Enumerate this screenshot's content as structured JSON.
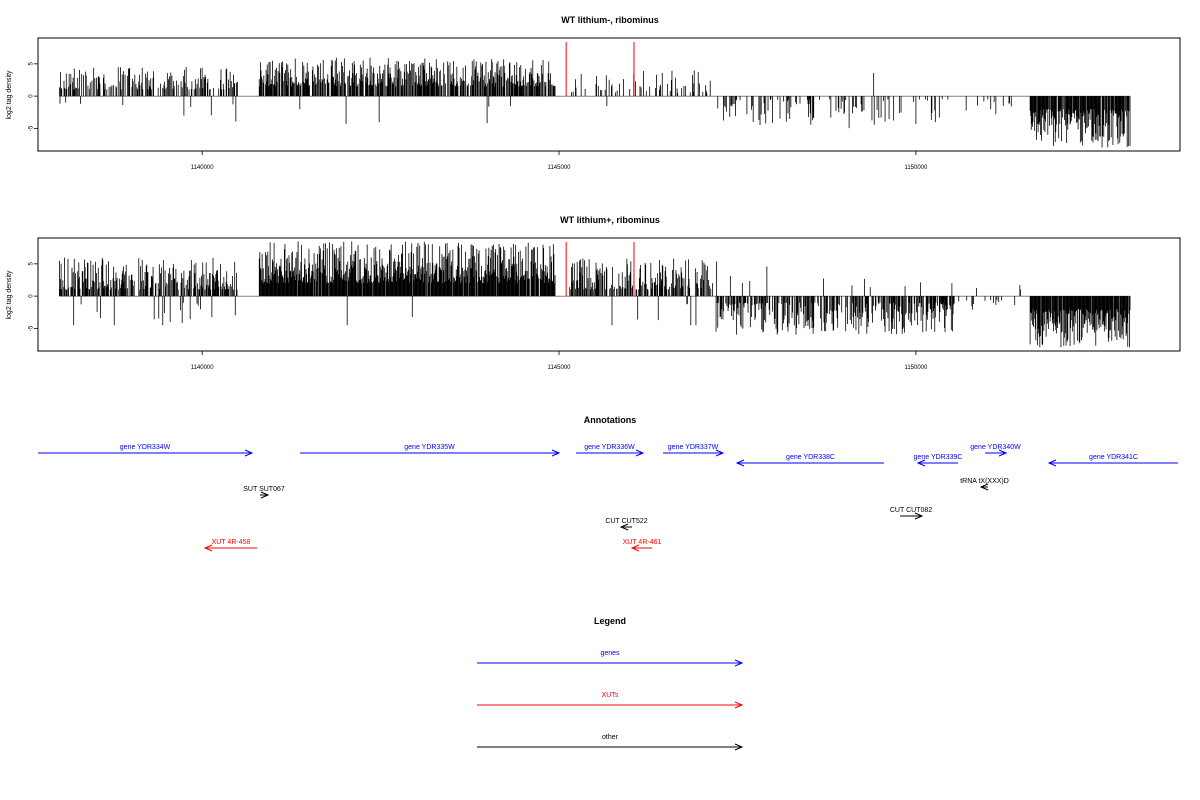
{
  "colors": {
    "genes": "#0000ff",
    "xuts": "#ff0000",
    "other": "#000000",
    "marker": "#ff0000"
  },
  "chart_data": [
    {
      "type": "bar",
      "title": "WT lithium-, ribominus",
      "ylabel": "log2 tag density",
      "xlim": [
        1137700,
        1153700
      ],
      "ylim": [
        -8.5,
        9
      ],
      "yticks": [
        -5,
        0,
        5
      ],
      "xticks": [
        1140000,
        1145000,
        1150000
      ],
      "marker_lines": [
        1145100,
        1146050
      ],
      "description_of_data": "dense per-position log2 density bars",
      "regions": [
        {
          "from": 1138000,
          "to": 1140500,
          "sign": 1,
          "min": 1.0,
          "max": 4.5,
          "density": 0.5,
          "neg_chance": 0.05
        },
        {
          "from": 1140800,
          "to": 1144950,
          "sign": 1,
          "min": 1.5,
          "max": 6.0,
          "density": 0.75,
          "neg_chance": 0.02
        },
        {
          "from": 1145150,
          "to": 1147150,
          "sign": 1,
          "min": 0.5,
          "max": 4.0,
          "density": 0.2,
          "neg_chance": 0.03
        },
        {
          "from": 1147200,
          "to": 1149000,
          "sign": -1,
          "min": 0.5,
          "max": 4.5,
          "density": 0.25,
          "neg_chance": 0.0
        },
        {
          "from": 1149000,
          "to": 1150500,
          "sign": -1,
          "min": 0.5,
          "max": 5.0,
          "density": 0.2,
          "neg_chance": 0.02
        },
        {
          "from": 1150600,
          "to": 1151500,
          "sign": -1,
          "min": 0.5,
          "max": 3.0,
          "density": 0.08,
          "neg_chance": 0.0
        },
        {
          "from": 1151600,
          "to": 1153000,
          "sign": -1,
          "min": 2.0,
          "max": 8.0,
          "density": 0.9,
          "neg_chance": 0.0
        }
      ]
    },
    {
      "type": "bar",
      "title": "WT lithium+, ribominus",
      "ylabel": "log2 tag density",
      "xlim": [
        1137700,
        1153700
      ],
      "ylim": [
        -8.5,
        9
      ],
      "yticks": [
        -5,
        0,
        5
      ],
      "xticks": [
        1140000,
        1145000,
        1150000
      ],
      "marker_lines": [
        1145100,
        1146050
      ],
      "description_of_data": "dense per-position log2 density bars",
      "regions": [
        {
          "from": 1138000,
          "to": 1140500,
          "sign": 1,
          "min": 1.0,
          "max": 6.0,
          "density": 0.7,
          "neg_chance": 0.08
        },
        {
          "from": 1140800,
          "to": 1144950,
          "sign": 1,
          "min": 2.0,
          "max": 8.5,
          "density": 0.95,
          "neg_chance": 0.01
        },
        {
          "from": 1145150,
          "to": 1147150,
          "sign": 1,
          "min": 1.0,
          "max": 6.0,
          "density": 0.6,
          "neg_chance": 0.04
        },
        {
          "from": 1147200,
          "to": 1150550,
          "sign": -1,
          "min": 1.0,
          "max": 6.0,
          "density": 0.65,
          "neg_chance": 0.04
        },
        {
          "from": 1150600,
          "to": 1151500,
          "sign": -1,
          "min": 0.5,
          "max": 3.0,
          "density": 0.12,
          "neg_chance": 0.15
        },
        {
          "from": 1151600,
          "to": 1153000,
          "sign": -1,
          "min": 2.0,
          "max": 8.0,
          "density": 0.95,
          "neg_chance": 0.0
        }
      ]
    }
  ],
  "annotations": {
    "title": "Annotations",
    "items": [
      {
        "label": "gene YDR334W",
        "kind": "genes",
        "dir": 1,
        "x0": 38,
        "x1": 252,
        "row": 0
      },
      {
        "label": "gene YDR335W",
        "kind": "genes",
        "dir": 1,
        "x0": 300,
        "x1": 559,
        "row": 0
      },
      {
        "label": "gene YDR336W",
        "kind": "genes",
        "dir": 1,
        "x0": 576,
        "x1": 643,
        "row": 0
      },
      {
        "label": "gene YDR337W",
        "kind": "genes",
        "dir": 1,
        "x0": 663,
        "x1": 723,
        "row": 0
      },
      {
        "label": "gene YDR338C",
        "kind": "genes",
        "dir": -1,
        "x0": 737,
        "x1": 884,
        "row": 1
      },
      {
        "label": "gene YDR339C",
        "kind": "genes",
        "dir": -1,
        "x0": 918,
        "x1": 958,
        "row": 1
      },
      {
        "label": "gene YDR340W",
        "kind": "genes",
        "dir": 1,
        "x0": 985,
        "x1": 1006,
        "row": 0
      },
      {
        "label": "gene YDR341C",
        "kind": "genes",
        "dir": -1,
        "x0": 1049,
        "x1": 1178,
        "row": 1
      },
      {
        "label": "tRNA tX(XXX)D",
        "kind": "other",
        "dir": -1,
        "x0": 981,
        "x1": 988,
        "row": 2
      },
      {
        "label": "SUT SUT067",
        "kind": "other",
        "dir": 1,
        "x0": 260,
        "x1": 268,
        "row": 3
      },
      {
        "label": "CUT CUT082",
        "kind": "other",
        "dir": 1,
        "x0": 900,
        "x1": 922,
        "row": 4
      },
      {
        "label": "CUT CUT522",
        "kind": "other",
        "dir": -1,
        "x0": 621,
        "x1": 632,
        "row": 5
      },
      {
        "label": "XUT 4R-458",
        "kind": "xuts",
        "dir": -1,
        "x0": 205,
        "x1": 257,
        "row": 6
      },
      {
        "label": "XUT 4R-461",
        "kind": "xuts",
        "dir": -1,
        "x0": 632,
        "x1": 652,
        "row": 6
      }
    ]
  },
  "legend": {
    "title": "Legend",
    "entries": [
      {
        "label": "genes",
        "kind": "genes"
      },
      {
        "label": "XUTs",
        "kind": "xuts"
      },
      {
        "label": "other",
        "kind": "other"
      }
    ]
  }
}
